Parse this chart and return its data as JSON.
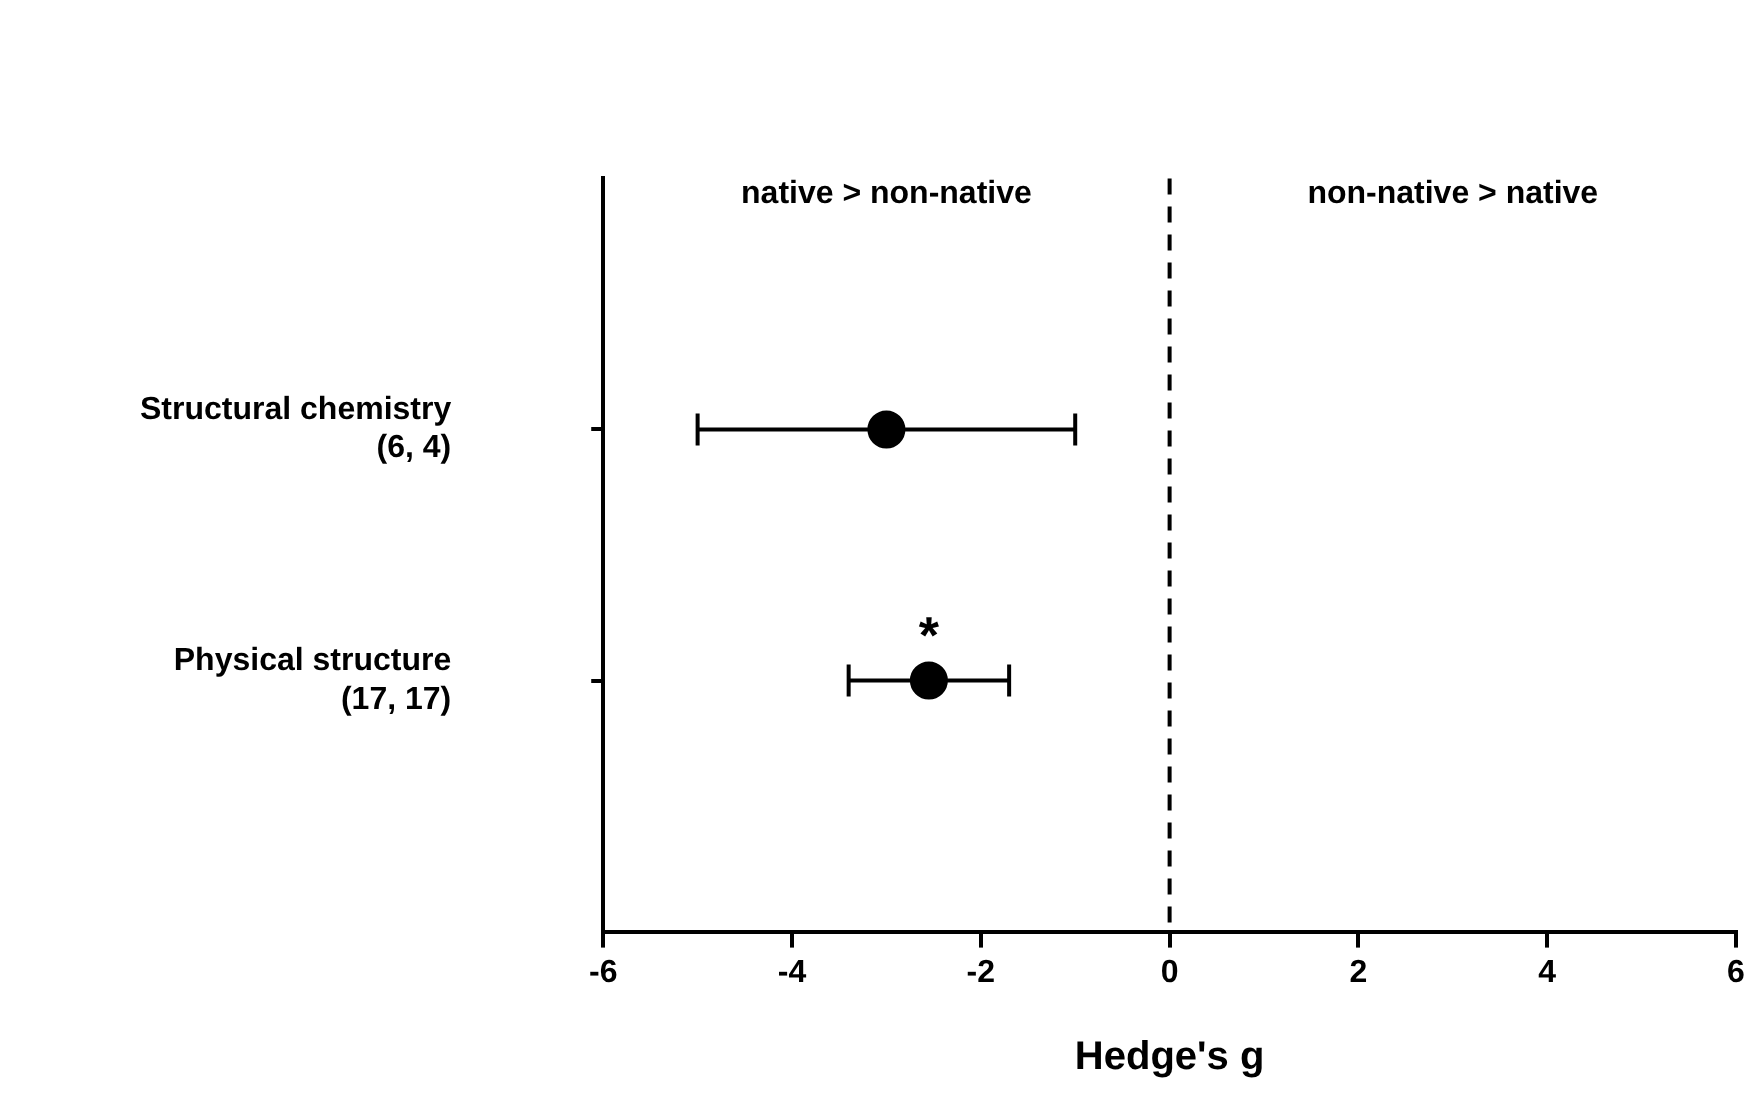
{
  "chart_data": {
    "type": "scatter",
    "orientation": "horizontal",
    "xlabel": "Hedge's g",
    "categories": [
      "Structural chemistry\n(6, 4)",
      "Physical structure\n(17, 17)"
    ],
    "series": [
      {
        "color": "#000000",
        "values": [
          -3.0,
          -2.55
        ],
        "errors": [
          [
            -5.0,
            -1.0
          ],
          [
            -3.4,
            -1.7
          ]
        ]
      }
    ],
    "xlim": [
      -6,
      6
    ],
    "xticks": [
      -6,
      -4,
      -2,
      0,
      2,
      4,
      6
    ],
    "ref_lines": [
      {
        "axis": "x",
        "value": 0,
        "line_style": "dashed",
        "color": "#000000"
      }
    ],
    "annotations": [
      "native > non-native",
      "non-native > native",
      {
        "text": "*",
        "x": -2.55,
        "y": "Physical structure\n(17, 17)"
      }
    ],
    "marker": "circle",
    "grid": false,
    "legend": false
  }
}
